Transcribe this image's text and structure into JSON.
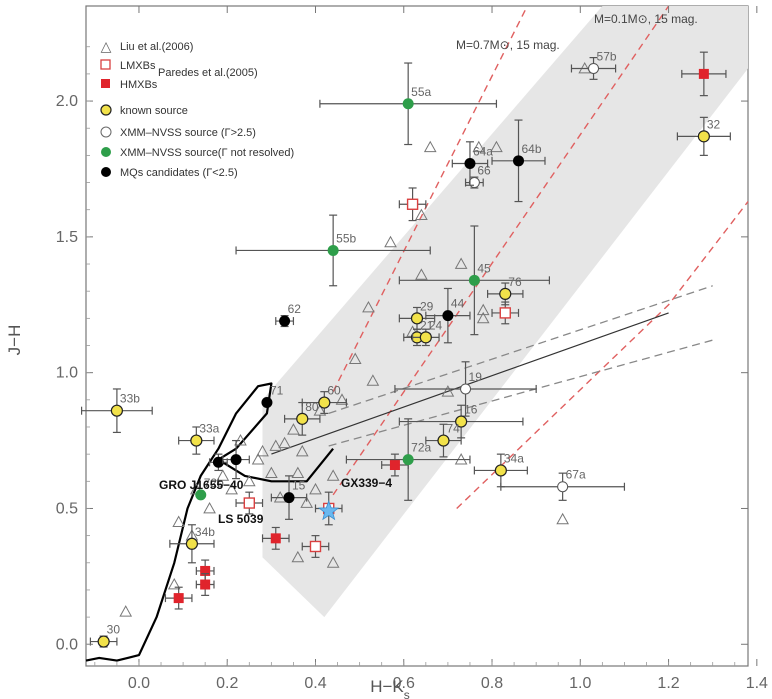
{
  "chart_data": {
    "type": "scatter",
    "xlabel": "H−K",
    "xlabel_sub": "s",
    "ylabel": "J−H",
    "xlim": [
      -0.12,
      1.38
    ],
    "ylim": [
      -0.08,
      2.35
    ],
    "xticks": [
      "0.0",
      "0.2",
      "0.4",
      "0.6",
      "0.8",
      "1.0",
      "1.2",
      "1.4"
    ],
    "xtick_values": [
      0.0,
      0.2,
      0.4,
      0.6,
      0.8,
      1.0,
      1.2,
      1.4
    ],
    "yticks": [
      "0.0",
      "0.5",
      "1.0",
      "1.5",
      "2.0"
    ],
    "ytick_values": [
      0.0,
      0.5,
      1.0,
      1.5,
      2.0
    ],
    "legend": [
      {
        "key": "triangle",
        "label": "Liu et al.(2006)"
      },
      {
        "key": "lmxb",
        "label": "LMXBs"
      },
      {
        "key": "hmxb",
        "label": "HMXBs"
      },
      {
        "key": "known",
        "label": "known source"
      },
      {
        "key": "xmm_open",
        "label": "XMM–NVSS source (Γ>2.5)"
      },
      {
        "key": "xmm_green",
        "label": "XMM–NVSS source(Γ not resolved)"
      },
      {
        "key": "mq",
        "label": "MQs candidates (Γ<2.5)"
      }
    ],
    "legend_ref": "Paredes et al.(2005)",
    "track_labels": [
      "M=0.1M⊙, 15 mag.",
      "M=0.7M⊙, 15 mag."
    ],
    "callouts": [
      {
        "text": "GRO J1655−40",
        "x": 0.24,
        "y": 0.53
      },
      {
        "text": "GX339−4",
        "x": 0.44,
        "y": 0.49
      },
      {
        "text": "LS 5039",
        "x": 0.16,
        "y": 0.31
      }
    ],
    "colors": {
      "band": "#e6e6e6",
      "track_red": "#e06060",
      "track_gray": "#888888",
      "known": "#f2e24a",
      "xmm_green": "#2e9e4a",
      "mq": "#000000",
      "hmxb": "#e0242c",
      "lmxb": "#d94040",
      "star": "#6ab8f0"
    },
    "shaded_band": [
      [
        0.28,
        0.9
      ],
      [
        1.05,
        2.35
      ],
      [
        1.38,
        2.35
      ],
      [
        1.38,
        2.12
      ],
      [
        0.42,
        0.1
      ],
      [
        0.28,
        0.32
      ]
    ],
    "red_dashed_tracks": [
      [
        [
          0.44,
          0.93
        ],
        [
          0.88,
          2.35
        ]
      ],
      [
        [
          0.44,
          0.55
        ],
        [
          1.2,
          2.35
        ]
      ],
      [
        [
          0.72,
          0.5
        ],
        [
          1.2,
          1.25
        ],
        [
          1.38,
          1.63
        ]
      ]
    ],
    "gray_dashed_lines": [
      [
        [
          0.43,
          0.85
        ],
        [
          1.3,
          1.32
        ]
      ],
      [
        [
          0.43,
          0.73
        ],
        [
          1.3,
          1.12
        ]
      ]
    ],
    "gray_solid_line": [
      [
        0.3,
        0.7
      ],
      [
        1.2,
        1.22
      ]
    ],
    "black_curve": [
      [
        -0.12,
        -0.06
      ],
      [
        -0.09,
        -0.05
      ],
      [
        -0.05,
        -0.06
      ],
      [
        0.0,
        -0.04
      ],
      [
        0.04,
        0.1
      ],
      [
        0.08,
        0.3
      ],
      [
        0.11,
        0.5
      ],
      [
        0.14,
        0.62
      ],
      [
        0.18,
        0.72
      ],
      [
        0.22,
        0.85
      ],
      [
        0.27,
        0.95
      ],
      [
        0.3,
        0.96
      ],
      [
        0.29,
        0.85
      ],
      [
        0.22,
        0.72
      ],
      [
        0.18,
        0.68
      ],
      [
        0.24,
        0.62
      ],
      [
        0.3,
        0.6
      ],
      [
        0.38,
        0.6
      ],
      [
        0.42,
        0.68
      ],
      [
        0.44,
        0.72
      ]
    ],
    "liu_triangles": [
      [
        -0.03,
        0.12
      ],
      [
        0.08,
        0.22
      ],
      [
        0.12,
        0.4
      ],
      [
        0.09,
        0.45
      ],
      [
        0.16,
        0.5
      ],
      [
        0.13,
        0.57
      ],
      [
        0.19,
        0.62
      ],
      [
        0.21,
        0.57
      ],
      [
        0.25,
        0.6
      ],
      [
        0.27,
        0.68
      ],
      [
        0.23,
        0.75
      ],
      [
        0.28,
        0.71
      ],
      [
        0.3,
        0.63
      ],
      [
        0.31,
        0.73
      ],
      [
        0.33,
        0.74
      ],
      [
        0.35,
        0.79
      ],
      [
        0.37,
        0.71
      ],
      [
        0.36,
        0.63
      ],
      [
        0.38,
        0.52
      ],
      [
        0.4,
        0.57
      ],
      [
        0.44,
        0.62
      ],
      [
        0.32,
        0.54
      ],
      [
        0.36,
        0.32
      ],
      [
        0.41,
        0.86
      ],
      [
        0.46,
        0.9
      ],
      [
        0.53,
        0.97
      ],
      [
        0.49,
        1.05
      ],
      [
        0.52,
        1.24
      ],
      [
        0.57,
        1.48
      ],
      [
        0.64,
        1.36
      ],
      [
        0.66,
        1.83
      ],
      [
        0.73,
        1.4
      ],
      [
        0.78,
        1.2
      ],
      [
        0.78,
        1.23
      ],
      [
        0.62,
        1.15
      ],
      [
        0.7,
        0.93
      ],
      [
        0.77,
        1.83
      ],
      [
        0.64,
        1.58
      ],
      [
        0.81,
        1.83
      ],
      [
        1.01,
        2.12
      ],
      [
        0.96,
        0.46
      ],
      [
        0.73,
        0.68
      ],
      [
        0.44,
        0.3
      ]
    ],
    "lmxb_points": [
      {
        "x": 0.62,
        "y": 1.62,
        "xerr": 0.03,
        "yerr": 0.06
      },
      {
        "x": 0.83,
        "y": 1.22,
        "xerr": 0.03,
        "yerr": 0.04
      },
      {
        "x": 0.25,
        "y": 0.52,
        "xerr": 0.03,
        "yerr": 0.04
      },
      {
        "x": 0.43,
        "y": 0.5,
        "xerr": 0.03,
        "yerr": 0.06
      },
      {
        "x": 0.4,
        "y": 0.36,
        "xerr": 0.03,
        "yerr": 0.04
      }
    ],
    "hmxb_points": [
      {
        "x": 1.28,
        "y": 2.1,
        "xerr": 0.05,
        "yerr": 0.08
      },
      {
        "x": 0.58,
        "y": 0.66,
        "xerr": 0.03,
        "yerr": 0.04
      },
      {
        "x": 0.31,
        "y": 0.39,
        "xerr": 0.03,
        "yerr": 0.04
      },
      {
        "x": 0.15,
        "y": 0.27,
        "xerr": 0.02,
        "yerr": 0.04
      },
      {
        "x": 0.15,
        "y": 0.22,
        "xerr": 0.02,
        "yerr": 0.04
      },
      {
        "x": 0.09,
        "y": 0.17,
        "xerr": 0.03,
        "yerr": 0.04
      }
    ],
    "known_points": [
      {
        "label": "30",
        "x": -0.08,
        "y": 0.01,
        "xerr": 0.03,
        "yerr": 0.02
      },
      {
        "label": "33b",
        "x": -0.05,
        "y": 0.86,
        "xerr": 0.08,
        "yerr": 0.08
      },
      {
        "label": "33a",
        "x": 0.13,
        "y": 0.75,
        "xerr": 0.04,
        "yerr": 0.05
      },
      {
        "label": "34b",
        "x": 0.12,
        "y": 0.37,
        "xerr": 0.05,
        "yerr": 0.07
      },
      {
        "label": "80",
        "x": 0.37,
        "y": 0.83,
        "xerr": 0.04,
        "yerr": 0.06
      },
      {
        "label": "60",
        "x": 0.42,
        "y": 0.89,
        "xerr": 0.05,
        "yerr": 0.04
      },
      {
        "label": "29",
        "x": 0.63,
        "y": 1.2,
        "xerr": 0.04,
        "yerr": 0.04
      },
      {
        "label": "21",
        "x": 0.63,
        "y": 1.13,
        "xerr": 0.03,
        "yerr": 0.03
      },
      {
        "label": "24",
        "x": 0.65,
        "y": 1.13,
        "xerr": 0.03,
        "yerr": 0.03
      },
      {
        "label": "76",
        "x": 0.83,
        "y": 1.29,
        "xerr": 0.04,
        "yerr": 0.04
      },
      {
        "label": "32",
        "x": 1.28,
        "y": 1.87,
        "xerr": 0.06,
        "yerr": 0.07
      },
      {
        "label": "16",
        "x": 0.73,
        "y": 0.82,
        "xerr": 0.14,
        "yerr": 0.06
      },
      {
        "label": "74",
        "x": 0.69,
        "y": 0.75,
        "xerr": 0.04,
        "yerr": 0.06
      },
      {
        "label": "34a",
        "x": 0.82,
        "y": 0.64,
        "xerr": 0.06,
        "yerr": 0.06
      }
    ],
    "xmm_open_points": [
      {
        "label": "57b",
        "x": 1.03,
        "y": 2.12,
        "xerr": 0.05,
        "yerr": 0.04
      },
      {
        "label": "66",
        "x": 0.76,
        "y": 1.7,
        "xerr": 0.02,
        "yerr": 0.02
      },
      {
        "label": "19",
        "x": 0.74,
        "y": 0.94,
        "xerr": 0.16,
        "yerr": 0.1
      },
      {
        "label": "67a",
        "x": 0.96,
        "y": 0.58,
        "xerr": 0.14,
        "yerr": 0.05
      }
    ],
    "xmm_green_points": [
      {
        "label": "55a",
        "x": 0.61,
        "y": 1.99,
        "xerr": 0.2,
        "yerr": 0.15
      },
      {
        "label": "55b",
        "x": 0.44,
        "y": 1.45,
        "xerr": 0.22,
        "yerr": 0.13
      },
      {
        "label": "45",
        "x": 0.76,
        "y": 1.34,
        "xerr": 0.17,
        "yerr": 0.2
      },
      {
        "label": "72a",
        "x": 0.61,
        "y": 0.68,
        "xerr": 0.14,
        "yerr": 0.15
      },
      {
        "label": "72b",
        "x": 0.14,
        "y": 0.55,
        "xerr": 0.0,
        "yerr": 0.0
      }
    ],
    "mq_points": [
      {
        "label": "64a",
        "x": 0.75,
        "y": 1.77,
        "xerr": 0.04,
        "yerr": 0.08
      },
      {
        "label": "64b",
        "x": 0.86,
        "y": 1.78,
        "xerr": 0.06,
        "yerr": 0.15
      },
      {
        "label": "62",
        "x": 0.33,
        "y": 1.19,
        "xerr": 0.02,
        "yerr": 0.02
      },
      {
        "label": "44",
        "x": 0.7,
        "y": 1.21,
        "xerr": 0.05,
        "yerr": 0.1
      },
      {
        "label": "71",
        "x": 0.29,
        "y": 0.89,
        "xerr": 0.0,
        "yerr": 0.0
      },
      {
        "label": "",
        "x": 0.18,
        "y": 0.67,
        "xerr": 0.02,
        "yerr": 0.03
      },
      {
        "label": "",
        "x": 0.22,
        "y": 0.68,
        "xerr": 0.03,
        "yerr": 0.07
      },
      {
        "label": "15",
        "x": 0.34,
        "y": 0.54,
        "xerr": 0.04,
        "yerr": 0.08
      }
    ],
    "highlight_star": {
      "x": 0.43,
      "y": 0.49
    }
  }
}
